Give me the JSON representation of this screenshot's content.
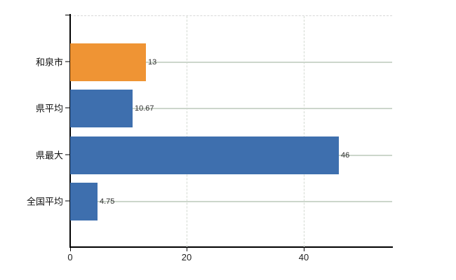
{
  "chart_data": {
    "type": "bar",
    "orientation": "horizontal",
    "title": "",
    "xlabel": "",
    "ylabel": "",
    "categories": [
      "和泉市",
      "県平均",
      "県最大",
      "全国平均"
    ],
    "values": [
      13,
      10.67,
      46,
      4.75
    ],
    "data_labels": [
      "13",
      "10.67",
      "46",
      "4.75"
    ],
    "bar_colors": [
      "#ef9434",
      "#3e6fae",
      "#3e6fae",
      "#3e6fae"
    ],
    "x_ticks": [
      0,
      20,
      40
    ],
    "x_tick_labels": [
      "0",
      "20",
      "40"
    ],
    "xlim": [
      0,
      55.2
    ],
    "grid": true,
    "legend": "none",
    "colors": {
      "highlight_bar": "#ef9434",
      "default_bar": "#3e6fae",
      "h_gridline": "#ccd6cb",
      "v_gridline": "#d4dad2",
      "plot_top_border": "#d7d7d7",
      "axis": "#000000",
      "label_text": "#111111",
      "value_text": "#2e2e2e"
    }
  }
}
